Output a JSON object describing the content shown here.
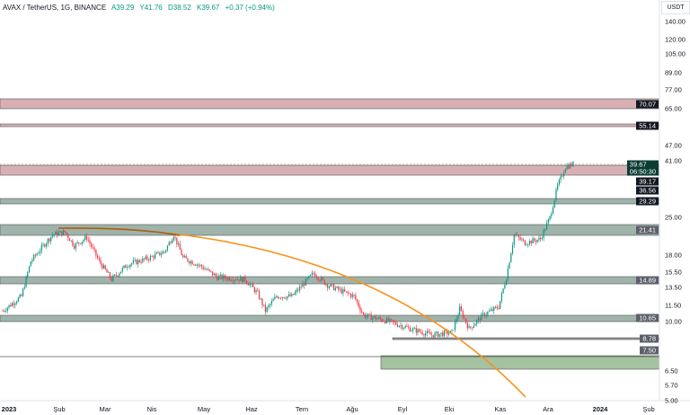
{
  "legend": {
    "symbol": "AVAX / TetherUS, 1G, BINANCE",
    "open": "A39.29",
    "high": "Y41.76",
    "low": "D38.52",
    "close": "K39.67",
    "change": "+0.37 (+0.94%)"
  },
  "axis": {
    "unit": "USDT",
    "ticks": [
      "140.00",
      "120.00",
      "105.00",
      "89.00",
      "77.00",
      "65.00",
      "47.00",
      "41.00",
      "25.00",
      "18.00",
      "15.50",
      "13.50",
      "11.50",
      "10.00",
      "6.50",
      "5.70",
      "5.00"
    ]
  },
  "price_tags": {
    "p70": "70.07",
    "p55": "55.14",
    "current": "39.67",
    "countdown": "06:50:30",
    "p39": "39.17",
    "p36": "36.56",
    "p29": "29.29",
    "p21": "21.41",
    "p14": "14.89",
    "p10": "10.65",
    "p8": "8.78",
    "p7": "7.50"
  },
  "time_axis": [
    "2023",
    "Şub",
    "Mar",
    "Nis",
    "May",
    "Haz",
    "Tem",
    "Ağu",
    "Eyl",
    "Eki",
    "Kas",
    "Ara",
    "2024",
    "Şub"
  ],
  "colors": {
    "up": "#089981",
    "down": "#f23645",
    "resist": "#d8b0b3",
    "support": "#9fb3ab",
    "curve": "#f7931a"
  },
  "price_path": [
    [
      -4,
      11
    ],
    [
      8,
      12.5
    ],
    [
      14,
      17
    ],
    [
      22,
      19.5
    ],
    [
      28,
      21.5
    ],
    [
      36,
      22
    ],
    [
      42,
      19.5
    ],
    [
      50,
      21
    ],
    [
      58,
      17
    ],
    [
      66,
      14.5
    ],
    [
      76,
      16.5
    ],
    [
      90,
      17.5
    ],
    [
      100,
      18.5
    ],
    [
      106,
      21.5
    ],
    [
      112,
      17.5
    ],
    [
      122,
      16.5
    ],
    [
      134,
      14.8
    ],
    [
      152,
      14.5
    ],
    [
      160,
      12.8
    ],
    [
      165,
      11
    ],
    [
      172,
      12.5
    ],
    [
      182,
      12.5
    ],
    [
      196,
      15.3
    ],
    [
      205,
      13.8
    ],
    [
      222,
      12.5
    ],
    [
      228,
      10.6
    ],
    [
      245,
      10
    ],
    [
      258,
      9.4
    ],
    [
      272,
      8.9
    ],
    [
      285,
      9.1
    ],
    [
      290,
      11.2
    ],
    [
      296,
      9.4
    ],
    [
      305,
      10.6
    ],
    [
      315,
      11.4
    ],
    [
      320,
      14.8
    ],
    [
      325,
      21.5
    ],
    [
      332,
      20
    ],
    [
      342,
      20.7
    ],
    [
      348,
      25
    ],
    [
      353,
      33
    ],
    [
      358,
      39
    ],
    [
      363,
      40
    ]
  ]
}
